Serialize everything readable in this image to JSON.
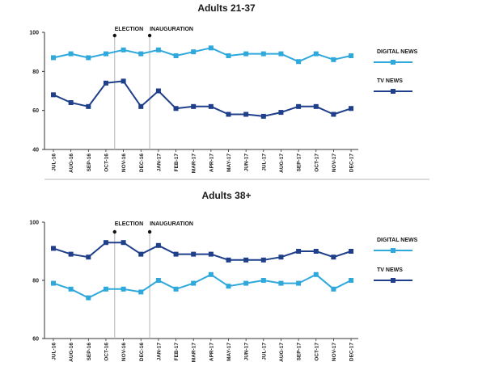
{
  "colors": {
    "digital": "#2fa8dc",
    "tv": "#1f3f8a",
    "axis": "#333333",
    "eventline": "#b5b5b5",
    "divider": "#c8c8c8"
  },
  "chart_data": [
    {
      "type": "line",
      "title": "Adults 21-37",
      "categories": [
        "JUL-16",
        "AUG-16",
        "SEP-16",
        "OCT-16",
        "NOV-16",
        "DEC-16",
        "JAN-17",
        "FEB-17",
        "MAR-17",
        "APR-17",
        "MAY-17",
        "JUN-17",
        "JUL-17",
        "AUG-17",
        "SEP-17",
        "OCT-17",
        "NOV-17",
        "DEC-17"
      ],
      "ylim": [
        40,
        100
      ],
      "yticks": [
        40,
        60,
        80,
        100
      ],
      "series": [
        {
          "name": "DIGITAL NEWS",
          "color": "#2fa8dc",
          "values": [
            87,
            89,
            87,
            89,
            91,
            89,
            91,
            88,
            90,
            92,
            88,
            89,
            89,
            89,
            85,
            89,
            86,
            88
          ]
        },
        {
          "name": "TV NEWS",
          "color": "#1f3f8a",
          "values": [
            68,
            64,
            62,
            74,
            75,
            62,
            70,
            61,
            62,
            62,
            58,
            58,
            57,
            59,
            62,
            62,
            58,
            61
          ]
        }
      ],
      "events": [
        {
          "label": "ELECTION",
          "after_category": "OCT-16"
        },
        {
          "label": "INAUGURATION",
          "after_category": "DEC-16"
        }
      ],
      "legend": "right"
    },
    {
      "type": "line",
      "title": "Adults 38+",
      "categories": [
        "JUL-16",
        "AUG-16",
        "SEP-16",
        "OCT-16",
        "NOV-16",
        "DEC-16",
        "JAN-17",
        "FEB-17",
        "MAR-17",
        "APR-17",
        "MAY-17",
        "JUN-17",
        "JUL-17",
        "AUG-17",
        "SEP-17",
        "OCT-17",
        "NOV-17",
        "DEC-17"
      ],
      "ylim": [
        60,
        100
      ],
      "yticks": [
        60,
        80,
        100
      ],
      "series": [
        {
          "name": "DIGITAL NEWS",
          "color": "#2fa8dc",
          "values": [
            79,
            77,
            74,
            77,
            77,
            76,
            80,
            77,
            79,
            82,
            78,
            79,
            80,
            79,
            79,
            82,
            77,
            80
          ]
        },
        {
          "name": "TV NEWS",
          "color": "#1f3f8a",
          "values": [
            91,
            89,
            88,
            93,
            93,
            89,
            92,
            89,
            89,
            89,
            87,
            87,
            87,
            88,
            90,
            90,
            88,
            90
          ]
        }
      ],
      "events": [
        {
          "label": "ELECTION",
          "after_category": "OCT-16"
        },
        {
          "label": "INAUGURATION",
          "after_category": "DEC-16"
        }
      ],
      "legend": "right"
    }
  ]
}
